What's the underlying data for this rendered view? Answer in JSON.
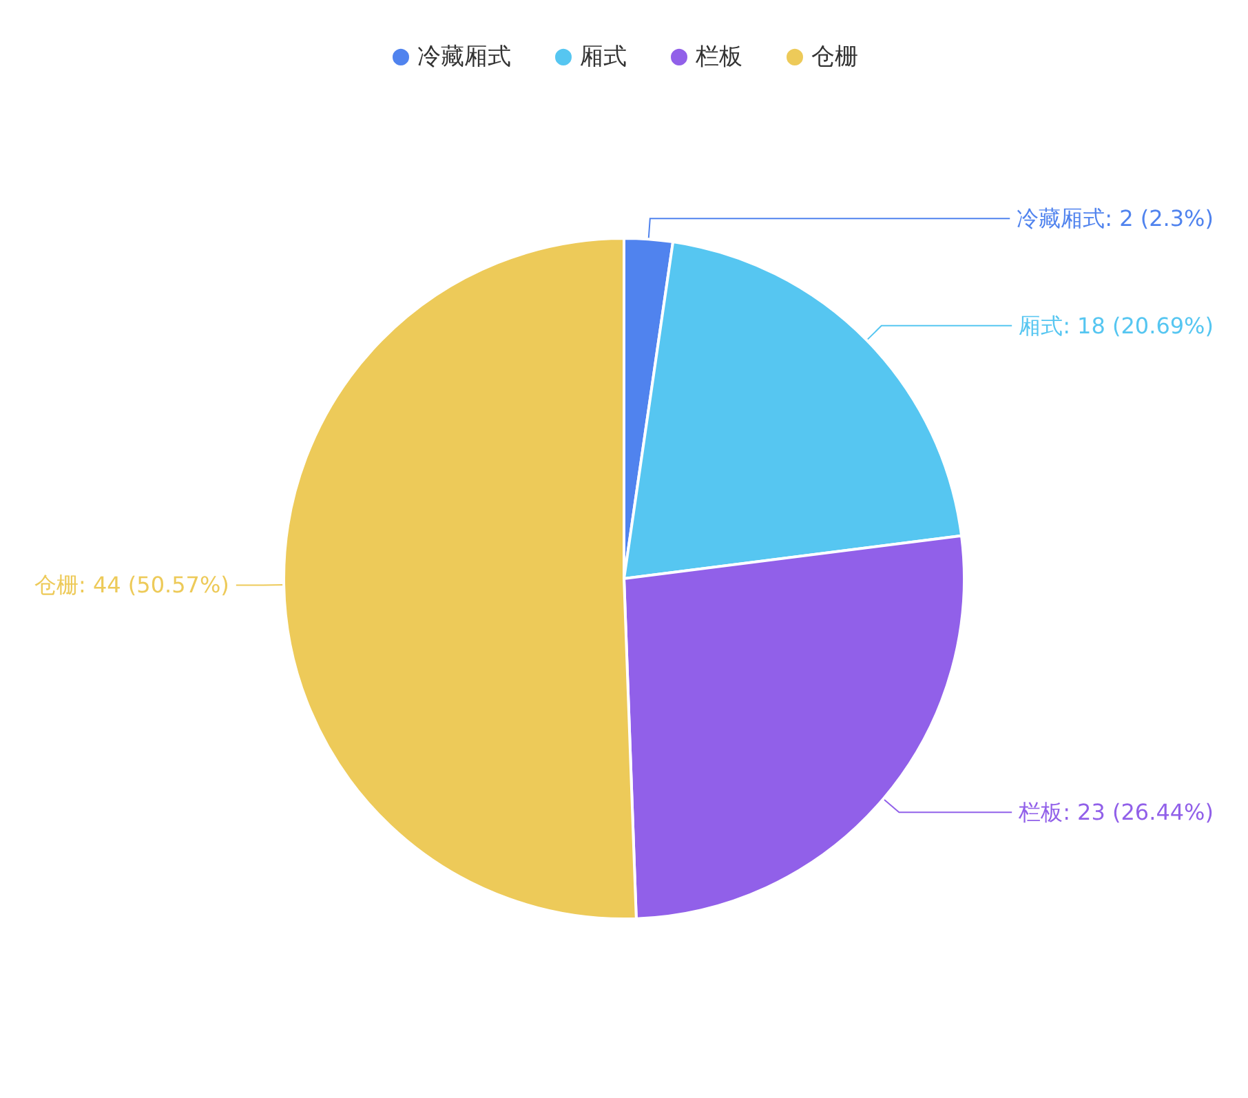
{
  "chart_data": {
    "type": "pie",
    "categories": [
      "冷藏厢式",
      "厢式",
      "栏板",
      "仓栅"
    ],
    "values": [
      2,
      18,
      23,
      44
    ],
    "colors": [
      "#5083ee",
      "#56c6f1",
      "#9160e9",
      "#edca59"
    ],
    "value_labels": [
      "冷藏厢式: 2 (2.3%)",
      "厢式: 18 (20.69%)",
      "栏板: 23 (26.44%)",
      "仓栅: 44 (50.57%)"
    ],
    "legend": "top"
  }
}
